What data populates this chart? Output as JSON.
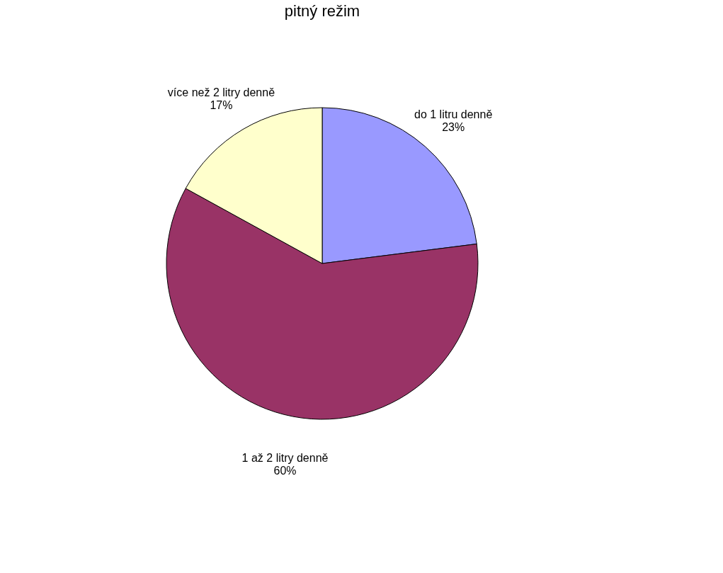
{
  "chart_data": {
    "type": "pie",
    "title": "pitný režim",
    "categories": [
      "do 1 litru denně",
      "1 až 2 litry denně",
      "více než 2 litry denně"
    ],
    "values": [
      23,
      60,
      17
    ],
    "colors": [
      "#9999ff",
      "#993366",
      "#ffffcc"
    ],
    "value_labels": [
      "23%",
      "60%",
      "17%"
    ],
    "legend": false
  }
}
